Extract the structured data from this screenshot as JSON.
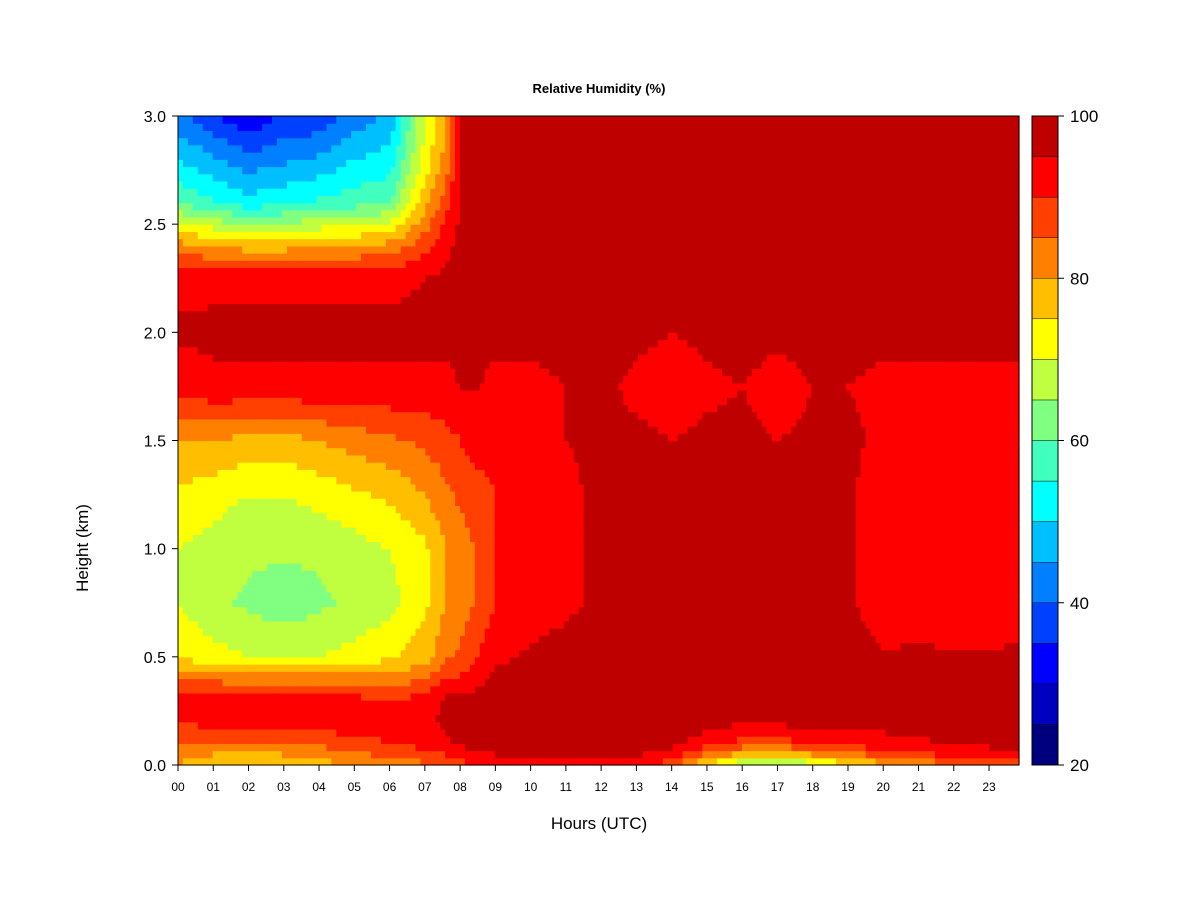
{
  "chart_data": {
    "type": "heatmap",
    "title": "Relative Humidity (%)",
    "xlabel": "Hours (UTC)",
    "ylabel": "Height (km)",
    "x_ticks": [
      "00",
      "01",
      "02",
      "03",
      "04",
      "05",
      "06",
      "07",
      "08",
      "09",
      "10",
      "11",
      "12",
      "13",
      "14",
      "15",
      "16",
      "17",
      "18",
      "19",
      "20",
      "21",
      "22",
      "23"
    ],
    "y_ticks": [
      "0.0",
      "0.5",
      "1.0",
      "1.5",
      "2.0",
      "2.5",
      "3.0"
    ],
    "xlim": [
      0,
      23.85
    ],
    "ylim": [
      0,
      3
    ],
    "grid": false,
    "colorbar": {
      "range": [
        20,
        100
      ],
      "levels": [
        20,
        25,
        30,
        35,
        40,
        45,
        50,
        55,
        60,
        65,
        70,
        75,
        80,
        85,
        90,
        95,
        100
      ],
      "colors": [
        "#00007F",
        "#0000BF",
        "#0000FF",
        "#0040FF",
        "#0080FF",
        "#00BFFF",
        "#00FFFF",
        "#40FFBF",
        "#80FF80",
        "#BFFF40",
        "#FFFF00",
        "#FFBF00",
        "#FF8000",
        "#FF4000",
        "#FF0000",
        "#BF0000"
      ],
      "tick_labels": [
        "20",
        "40",
        "60",
        "80",
        "100"
      ],
      "tick_values": [
        20,
        40,
        60,
        80,
        100
      ]
    },
    "profile_heights_km": [
      0.0,
      0.05,
      0.1,
      0.2,
      0.3,
      0.5,
      0.75,
      1.0,
      1.25,
      1.5,
      1.75,
      2.0,
      2.25,
      2.4,
      2.6,
      2.8,
      3.0
    ],
    "profiles": [
      {
        "hour": 0.0,
        "rh": [
          80,
          82,
          85,
          90,
          94,
          74,
          70,
          70,
          74,
          80,
          92,
          96,
          93,
          82,
          60,
          50,
          42
        ]
      },
      {
        "hour": 1.0,
        "rh": [
          76,
          80,
          85,
          92,
          95,
          72,
          66,
          68,
          72,
          80,
          94,
          96,
          94,
          80,
          56,
          46,
          36
        ]
      },
      {
        "hour": 2.0,
        "rh": [
          74,
          78,
          84,
          92,
          94,
          70,
          64,
          66,
          70,
          78,
          94,
          96,
          94,
          78,
          52,
          42,
          30
        ]
      },
      {
        "hour": 3.0,
        "rh": [
          76,
          80,
          86,
          93,
          94,
          70,
          62,
          66,
          70,
          78,
          94,
          96,
          94,
          78,
          54,
          44,
          36
        ]
      },
      {
        "hour": 4.0,
        "rh": [
          78,
          82,
          86,
          93,
          94,
          70,
          64,
          66,
          72,
          80,
          94,
          96,
          94,
          80,
          56,
          46,
          36
        ]
      },
      {
        "hour": 5.0,
        "rh": [
          80,
          84,
          88,
          93,
          92,
          72,
          66,
          68,
          74,
          82,
          94,
          96,
          94,
          80,
          58,
          50,
          42
        ]
      },
      {
        "hour": 6.0,
        "rh": [
          82,
          86,
          90,
          92,
          90,
          74,
          68,
          70,
          76,
          84,
          94,
          96,
          94,
          82,
          60,
          52,
          46
        ]
      },
      {
        "hour": 7.0,
        "rh": [
          84,
          88,
          92,
          94,
          92,
          78,
          74,
          74,
          80,
          86,
          94,
          96,
          95,
          88,
          78,
          72,
          70
        ]
      },
      {
        "hour": 7.6,
        "rh": [
          86,
          90,
          94,
          96,
          96,
          84,
          80,
          80,
          84,
          88,
          94,
          96,
          96,
          94,
          88,
          82,
          78
        ]
      },
      {
        "hour": 8.0,
        "rh": [
          88,
          92,
          96,
          97,
          96,
          86,
          82,
          82,
          86,
          90,
          95,
          97,
          97,
          96,
          96,
          96,
          96
        ]
      },
      {
        "hour": 8.5,
        "rh": [
          90,
          94,
          97,
          98,
          97,
          90,
          86,
          86,
          88,
          92,
          95,
          97,
          98,
          98,
          98,
          98,
          98
        ]
      },
      {
        "hour": 9.0,
        "rh": [
          92,
          95,
          98,
          98,
          98,
          94,
          90,
          90,
          90,
          92,
          94,
          96,
          98,
          98,
          98,
          98,
          98
        ]
      },
      {
        "hour": 10.0,
        "rh": [
          92,
          96,
          98,
          98,
          98,
          96,
          92,
          92,
          92,
          94,
          94,
          96,
          98,
          98,
          98,
          98,
          98
        ]
      },
      {
        "hour": 11.0,
        "rh": [
          92,
          96,
          98,
          98,
          98,
          97,
          94,
          94,
          94,
          95,
          95,
          97,
          98,
          98,
          98,
          98,
          98
        ]
      },
      {
        "hour": 12.0,
        "rh": [
          94,
          97,
          98,
          98,
          98,
          98,
          96,
          96,
          96,
          96,
          96,
          97,
          98,
          98,
          98,
          98,
          98
        ]
      },
      {
        "hour": 13.0,
        "rh": [
          94,
          96,
          98,
          98,
          98,
          98,
          96,
          96,
          96,
          96,
          94,
          96,
          98,
          98,
          98,
          98,
          98
        ]
      },
      {
        "hour": 14.0,
        "rh": [
          86,
          92,
          97,
          98,
          98,
          98,
          96,
          95,
          95,
          95,
          93,
          95,
          98,
          98,
          98,
          98,
          98
        ]
      },
      {
        "hour": 15.0,
        "rh": [
          74,
          84,
          92,
          97,
          98,
          98,
          96,
          95,
          96,
          96,
          94,
          96,
          98,
          98,
          98,
          98,
          98
        ]
      },
      {
        "hour": 16.0,
        "rh": [
          64,
          78,
          88,
          96,
          98,
          98,
          97,
          96,
          96,
          96,
          95,
          97,
          98,
          98,
          98,
          98,
          98
        ]
      },
      {
        "hour": 17.0,
        "rh": [
          62,
          76,
          88,
          96,
          98,
          98,
          96,
          95,
          95,
          95,
          93,
          96,
          98,
          98,
          98,
          98,
          98
        ]
      },
      {
        "hour": 18.0,
        "rh": [
          66,
          80,
          90,
          97,
          98,
          98,
          96,
          96,
          96,
          96,
          95,
          97,
          98,
          98,
          98,
          98,
          98
        ]
      },
      {
        "hour": 19.0,
        "rh": [
          74,
          84,
          92,
          97,
          98,
          98,
          97,
          96,
          96,
          96,
          95,
          97,
          98,
          98,
          98,
          98,
          98
        ]
      },
      {
        "hour": 20.0,
        "rh": [
          78,
          86,
          93,
          97,
          98,
          96,
          90,
          92,
          92,
          94,
          94,
          96,
          98,
          98,
          98,
          98,
          98
        ]
      },
      {
        "hour": 21.0,
        "rh": [
          80,
          88,
          94,
          97,
          98,
          96,
          92,
          94,
          94,
          94,
          94,
          96,
          98,
          98,
          98,
          98,
          98
        ]
      },
      {
        "hour": 22.0,
        "rh": [
          86,
          92,
          96,
          98,
          98,
          96,
          90,
          92,
          90,
          90,
          94,
          96,
          98,
          98,
          98,
          98,
          98
        ]
      },
      {
        "hour": 23.0,
        "rh": [
          88,
          93,
          96,
          98,
          98,
          96,
          90,
          92,
          90,
          90,
          94,
          96,
          98,
          98,
          98,
          98,
          98
        ]
      },
      {
        "hour": 23.85,
        "rh": [
          88,
          93,
          96,
          98,
          98,
          96,
          92,
          92,
          92,
          92,
          94,
          96,
          98,
          98,
          98,
          98,
          98
        ]
      }
    ]
  }
}
